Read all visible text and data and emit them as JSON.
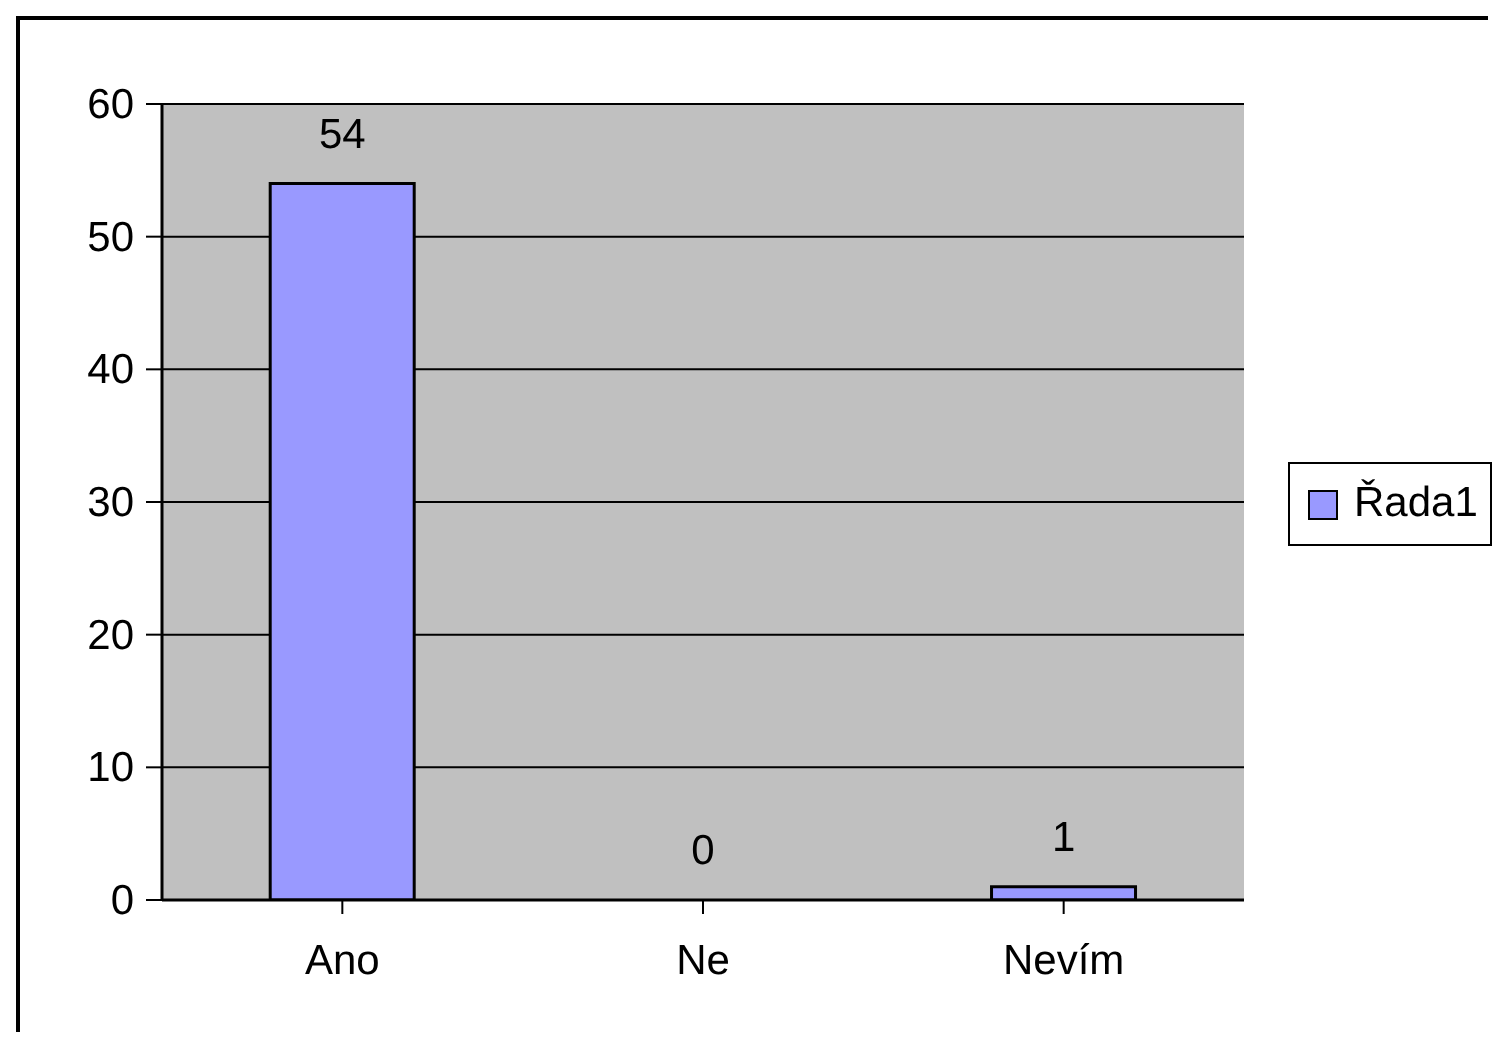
{
  "chart_data": {
    "type": "bar",
    "categories": [
      "Ano",
      "Ne",
      "Nevím"
    ],
    "series": [
      {
        "name": "Řada1",
        "color": "#9999ff",
        "values": [
          54,
          0,
          1
        ]
      }
    ],
    "ylim": [
      0,
      60
    ],
    "yticks": [
      0,
      10,
      20,
      30,
      40,
      50,
      60
    ],
    "grid": "y",
    "legend": "right",
    "data_labels": true
  }
}
